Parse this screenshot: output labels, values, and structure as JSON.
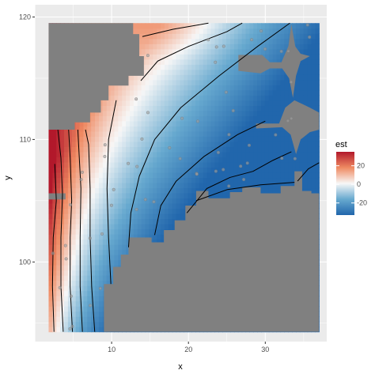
{
  "chart_data": {
    "type": "heatmap",
    "xlabel": "x",
    "ylabel": "y",
    "xlim": [
      0,
      38
    ],
    "ylim": [
      93.5,
      121
    ],
    "x_ticks": [
      10,
      20,
      30
    ],
    "y_ticks": [
      100,
      110,
      120
    ],
    "grid": true,
    "legend": {
      "title": "est",
      "position": "right",
      "ticks": [
        20,
        0,
        -20
      ],
      "range": [
        -33,
        35
      ],
      "colors": {
        "high": "#b2182b",
        "mid": "#f7f7f7",
        "low": "#2166ac"
      }
    },
    "land_color": "#808080",
    "contour_levels": [
      -30,
      -20,
      -10,
      0,
      10,
      20,
      30
    ],
    "points_color": "#a0a0a0"
  }
}
